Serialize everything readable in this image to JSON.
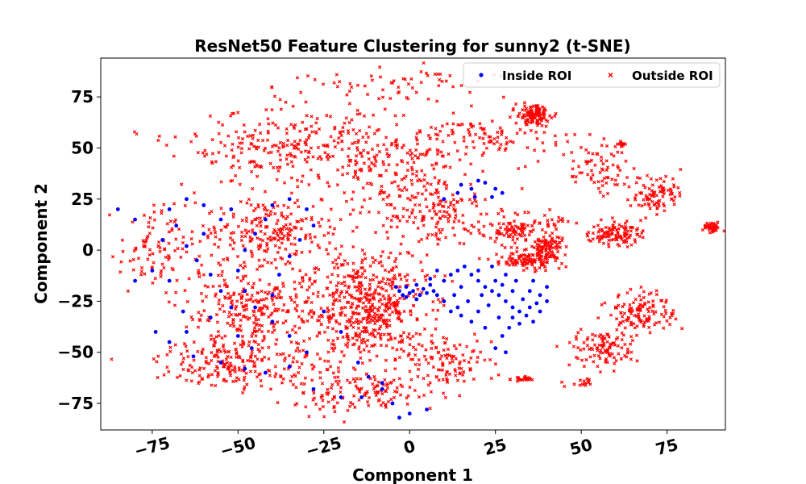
{
  "chart_data": {
    "type": "scatter",
    "title": "ResNet50 Feature Clustering for sunny2 (t-SNE)",
    "xlabel": "Component 1",
    "ylabel": "Component 2",
    "xlim": [
      -90,
      92
    ],
    "ylim": [
      -88,
      94
    ],
    "xticks": [
      -75,
      -50,
      -25,
      0,
      25,
      50,
      75
    ],
    "yticks": [
      -75,
      -50,
      -25,
      0,
      25,
      50,
      75
    ],
    "xtick_labels": [
      "−75",
      "−50",
      "−25",
      "0",
      "25",
      "50",
      "75"
    ],
    "ytick_labels": [
      "−75",
      "−50",
      "−25",
      "0",
      "25",
      "50",
      "75"
    ],
    "grid": false,
    "legend_position": "top-right",
    "series": [
      {
        "name": "Inside ROI",
        "color": "#0000ff",
        "marker": "circle",
        "points": [
          [
            -52,
            20
          ],
          [
            -55,
            15
          ],
          [
            -60,
            8
          ],
          [
            -65,
            2
          ],
          [
            -62,
            -5
          ],
          [
            -58,
            -12
          ],
          [
            -55,
            -20
          ],
          [
            -52,
            -28
          ],
          [
            -58,
            -33
          ],
          [
            -65,
            -40
          ],
          [
            -70,
            -45
          ],
          [
            -63,
            -52
          ],
          [
            -55,
            -55
          ],
          [
            -48,
            -58
          ],
          [
            -42,
            -60
          ],
          [
            -35,
            -57
          ],
          [
            -30,
            -50
          ],
          [
            -35,
            -42
          ],
          [
            -40,
            -35
          ],
          [
            -45,
            -28
          ],
          [
            -48,
            -20
          ],
          [
            -50,
            -10
          ],
          [
            -48,
            0
          ],
          [
            -45,
            8
          ],
          [
            -42,
            15
          ],
          [
            -40,
            22
          ],
          [
            -35,
            25
          ],
          [
            -30,
            20
          ],
          [
            -28,
            12
          ],
          [
            -32,
            5
          ],
          [
            -35,
            -3
          ],
          [
            -38,
            -12
          ],
          [
            -40,
            -22
          ],
          [
            -25,
            -30
          ],
          [
            -20,
            -40
          ],
          [
            -15,
            -55
          ],
          [
            -12,
            -62
          ],
          [
            -8,
            -68
          ],
          [
            -5,
            -75
          ],
          [
            0,
            -80
          ],
          [
            -3,
            -82
          ],
          [
            5,
            -78
          ],
          [
            -20,
            -72
          ],
          [
            -28,
            -68
          ],
          [
            -46,
            -48
          ],
          [
            -50,
            -42
          ],
          [
            -70,
            -15
          ],
          [
            -75,
            -10
          ],
          [
            -80,
            -15
          ],
          [
            -70,
            20
          ],
          [
            -65,
            25
          ],
          [
            -60,
            22
          ],
          [
            -68,
            12
          ],
          [
            -72,
            5
          ],
          [
            -80,
            15
          ],
          [
            -85,
            20
          ],
          [
            -74,
            -40
          ],
          [
            -66,
            -30
          ],
          [
            -3,
            -20
          ],
          [
            -1,
            -18
          ],
          [
            1,
            -20
          ],
          [
            3,
            -22
          ],
          [
            0,
            -21
          ],
          [
            -2,
            -22
          ],
          [
            2,
            -17
          ],
          [
            4,
            -19
          ],
          [
            5,
            -21
          ],
          [
            7,
            -20
          ],
          [
            -4,
            -18
          ],
          [
            -1,
            -23
          ],
          [
            2,
            -24
          ],
          [
            6,
            -17
          ],
          [
            8,
            -22
          ],
          [
            10,
            -15
          ],
          [
            12,
            -12
          ],
          [
            14,
            -10
          ],
          [
            16,
            -8
          ],
          [
            18,
            -12
          ],
          [
            20,
            -15
          ],
          [
            22,
            -18
          ],
          [
            24,
            -20
          ],
          [
            26,
            -22
          ],
          [
            28,
            -25
          ],
          [
            30,
            -28
          ],
          [
            32,
            -30
          ],
          [
            34,
            -32
          ],
          [
            36,
            -35
          ],
          [
            38,
            -30
          ],
          [
            40,
            -25
          ],
          [
            35,
            -20
          ],
          [
            30,
            -20
          ],
          [
            25,
            -15
          ],
          [
            20,
            -10
          ],
          [
            15,
            -18
          ],
          [
            10,
            -25
          ],
          [
            12,
            -30
          ],
          [
            15,
            -32
          ],
          [
            18,
            -35
          ],
          [
            20,
            -30
          ],
          [
            23,
            -27
          ],
          [
            26,
            -33
          ],
          [
            29,
            -38
          ],
          [
            32,
            -36
          ],
          [
            35,
            -28
          ],
          [
            38,
            -22
          ],
          [
            40,
            -18
          ],
          [
            36,
            -15
          ],
          [
            28,
            -12
          ],
          [
            24,
            -8
          ],
          [
            13,
            -22
          ],
          [
            17,
            -25
          ],
          [
            21,
            -22
          ],
          [
            27,
            -17
          ],
          [
            31,
            -15
          ],
          [
            22,
            -38
          ],
          [
            27,
            -42
          ],
          [
            25,
            -48
          ],
          [
            28,
            -50
          ],
          [
            37,
            -26
          ],
          [
            33,
            -24
          ],
          [
            8,
            -10
          ],
          [
            6,
            -14
          ],
          [
            14,
            -28
          ],
          [
            30,
            -33
          ],
          [
            15,
            32
          ],
          [
            18,
            30
          ],
          [
            20,
            34
          ],
          [
            22,
            33
          ],
          [
            25,
            30
          ],
          [
            27,
            28
          ],
          [
            24,
            26
          ],
          [
            19,
            26
          ],
          [
            14,
            28
          ],
          [
            10,
            25
          ],
          [
            -8,
            -65
          ],
          [
            -14,
            -72
          ]
        ]
      },
      {
        "name": "Outside ROI",
        "color": "#ff0000",
        "marker": "x",
        "clusters": [
          {
            "center": [
              -12,
              -28
            ],
            "spread": [
              14,
              22
            ],
            "count": 520
          },
          {
            "center": [
              -45,
              -30
            ],
            "spread": [
              18,
              20
            ],
            "count": 320
          },
          {
            "center": [
              -40,
              10
            ],
            "spread": [
              18,
              14
            ],
            "count": 220
          },
          {
            "center": [
              -35,
              50
            ],
            "spread": [
              25,
              15
            ],
            "count": 260
          },
          {
            "center": [
              -5,
              40
            ],
            "spread": [
              18,
              18
            ],
            "count": 160
          },
          {
            "center": [
              -50,
              -55
            ],
            "spread": [
              20,
              10
            ],
            "count": 180
          },
          {
            "center": [
              -15,
              -70
            ],
            "spread": [
              20,
              8
            ],
            "count": 140
          },
          {
            "center": [
              10,
              -55
            ],
            "spread": [
              12,
              10
            ],
            "count": 110
          },
          {
            "center": [
              5,
              20
            ],
            "spread": [
              14,
              14
            ],
            "count": 150
          },
          {
            "center": [
              25,
              55
            ],
            "spread": [
              18,
              10
            ],
            "count": 110
          },
          {
            "center": [
              32,
              10
            ],
            "spread": [
              10,
              6
            ],
            "count": 120
          },
          {
            "center": [
              33,
              -5
            ],
            "spread": [
              7,
              4
            ],
            "count": 90
          },
          {
            "center": [
              40,
              0
            ],
            "spread": [
              4,
              6
            ],
            "count": 110
          },
          {
            "center": [
              36,
              66
            ],
            "spread": [
              4,
              4
            ],
            "count": 120
          },
          {
            "center": [
              55,
              40
            ],
            "spread": [
              7,
              10
            ],
            "count": 70
          },
          {
            "center": [
              60,
              8
            ],
            "spread": [
              6,
              5
            ],
            "count": 110
          },
          {
            "center": [
              72,
              28
            ],
            "spread": [
              6,
              8
            ],
            "count": 90
          },
          {
            "center": [
              68,
              -30
            ],
            "spread": [
              8,
              8
            ],
            "count": 120
          },
          {
            "center": [
              57,
              -48
            ],
            "spread": [
              8,
              8
            ],
            "count": 110
          },
          {
            "center": [
              88,
              11
            ],
            "spread": [
              2,
              2
            ],
            "count": 45
          },
          {
            "center": [
              33,
              -63
            ],
            "spread": [
              3,
              1
            ],
            "count": 25
          },
          {
            "center": [
              -5,
              80
            ],
            "spread": [
              25,
              8
            ],
            "count": 60
          },
          {
            "center": [
              -75,
              0
            ],
            "spread": [
              8,
              18
            ],
            "count": 90
          },
          {
            "center": [
              50,
              -65
            ],
            "spread": [
              5,
              2
            ],
            "count": 15
          },
          {
            "center": [
              62,
              52
            ],
            "spread": [
              1,
              1
            ],
            "count": 15
          }
        ]
      }
    ]
  }
}
